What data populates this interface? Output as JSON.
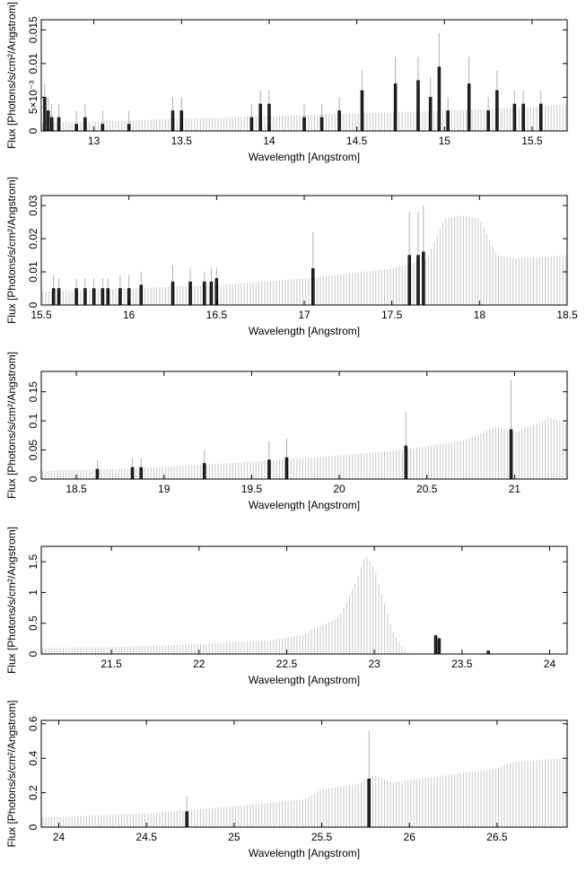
{
  "chart_data": [
    {
      "type": "bar",
      "panel": 1,
      "xlabel": "Wavelength [Angstrom]",
      "ylabel": "Flux [Photons/s/cm²/Angstrom]",
      "xlim": [
        12.7,
        15.7
      ],
      "ylim": [
        0,
        0.0165
      ],
      "xticks": [
        13,
        13.5,
        14,
        14.5,
        15,
        15.5
      ],
      "xtick_labels": [
        "13",
        "13.5",
        "14",
        "14.5",
        "15",
        "15.5"
      ],
      "yticks": [
        0,
        0.005,
        0.01,
        0.015
      ],
      "ytick_labels": [
        "0",
        "5×10⁻³",
        "0.01",
        "0.015"
      ],
      "grid": false,
      "continuum": [
        [
          12.7,
          0.0012
        ],
        [
          13.0,
          0.0014
        ],
        [
          13.5,
          0.0018
        ],
        [
          14.0,
          0.0022
        ],
        [
          14.5,
          0.0026
        ],
        [
          15.0,
          0.003
        ],
        [
          15.5,
          0.0035
        ],
        [
          15.7,
          0.004
        ]
      ],
      "lines": [
        [
          12.72,
          0.005,
          0.007
        ],
        [
          12.74,
          0.003,
          0.005
        ],
        [
          12.76,
          0.002,
          0.004
        ],
        [
          12.8,
          0.002,
          0.004
        ],
        [
          12.9,
          0.001,
          0.003
        ],
        [
          12.95,
          0.002,
          0.004
        ],
        [
          13.05,
          0.001,
          0.003
        ],
        [
          13.2,
          0.001,
          0.003
        ],
        [
          13.45,
          0.003,
          0.005
        ],
        [
          13.5,
          0.003,
          0.005
        ],
        [
          13.9,
          0.002,
          0.004
        ],
        [
          13.95,
          0.004,
          0.006
        ],
        [
          14.0,
          0.004,
          0.006
        ],
        [
          14.2,
          0.002,
          0.004
        ],
        [
          14.3,
          0.002,
          0.004
        ],
        [
          14.4,
          0.003,
          0.005
        ],
        [
          14.53,
          0.006,
          0.009
        ],
        [
          14.72,
          0.007,
          0.011
        ],
        [
          14.85,
          0.0075,
          0.011
        ],
        [
          14.92,
          0.005,
          0.008
        ],
        [
          14.97,
          0.0095,
          0.0145
        ],
        [
          15.02,
          0.003,
          0.005
        ],
        [
          15.14,
          0.007,
          0.011
        ],
        [
          15.25,
          0.003,
          0.005
        ],
        [
          15.3,
          0.006,
          0.009
        ],
        [
          15.4,
          0.004,
          0.006
        ],
        [
          15.45,
          0.004,
          0.006
        ],
        [
          15.55,
          0.004,
          0.006
        ]
      ]
    },
    {
      "type": "bar",
      "panel": 2,
      "xlabel": "Wavelength [Angstrom]",
      "ylabel": "Flux [Photons/s/cm²/Angstrom]",
      "xlim": [
        15.5,
        18.5
      ],
      "ylim": [
        0,
        0.033
      ],
      "xticks": [
        15.5,
        16,
        16.5,
        17,
        17.5,
        18,
        18.5
      ],
      "xtick_labels": [
        "15.5",
        "16",
        "16.5",
        "17",
        "17.5",
        "18",
        "18.5"
      ],
      "yticks": [
        0,
        0.01,
        0.02,
        0.03
      ],
      "ytick_labels": [
        "0",
        "0.01",
        "0.02",
        "0.03"
      ],
      "grid": false,
      "continuum": [
        [
          15.5,
          0.004
        ],
        [
          16.0,
          0.005
        ],
        [
          16.5,
          0.006
        ],
        [
          17.0,
          0.008
        ],
        [
          17.5,
          0.011
        ],
        [
          17.7,
          0.014
        ],
        [
          17.8,
          0.026
        ],
        [
          17.9,
          0.027
        ],
        [
          18.0,
          0.026
        ],
        [
          18.1,
          0.015
        ],
        [
          18.2,
          0.014
        ],
        [
          18.5,
          0.015
        ]
      ],
      "lines": [
        [
          15.57,
          0.005,
          0.009
        ],
        [
          15.6,
          0.005,
          0.008
        ],
        [
          15.7,
          0.005,
          0.008
        ],
        [
          15.75,
          0.005,
          0.008
        ],
        [
          15.8,
          0.005,
          0.008
        ],
        [
          15.85,
          0.005,
          0.008
        ],
        [
          15.88,
          0.005,
          0.008
        ],
        [
          15.95,
          0.005,
          0.009
        ],
        [
          16.0,
          0.005,
          0.009
        ],
        [
          16.07,
          0.006,
          0.01
        ],
        [
          16.25,
          0.007,
          0.012
        ],
        [
          16.35,
          0.007,
          0.011
        ],
        [
          16.43,
          0.007,
          0.01
        ],
        [
          16.47,
          0.007,
          0.011
        ],
        [
          16.5,
          0.008,
          0.011
        ],
        [
          17.05,
          0.011,
          0.022
        ],
        [
          17.6,
          0.015,
          0.028
        ],
        [
          17.65,
          0.015,
          0.028
        ],
        [
          17.68,
          0.016,
          0.03
        ]
      ]
    },
    {
      "type": "bar",
      "panel": 3,
      "xlabel": "Wavelength [Angstrom]",
      "ylabel": "Flux [Photons/s/cm²/Angstrom]",
      "xlim": [
        18.3,
        21.3
      ],
      "ylim": [
        0,
        0.185
      ],
      "xticks": [
        18.5,
        19,
        19.5,
        20,
        20.5,
        21
      ],
      "xtick_labels": [
        "18.5",
        "19",
        "19.5",
        "20",
        "20.5",
        "21"
      ],
      "yticks": [
        0,
        0.05,
        0.1,
        0.15
      ],
      "ytick_labels": [
        "0",
        "0.05",
        "0.1",
        "0.15"
      ],
      "grid": false,
      "continuum": [
        [
          18.3,
          0.014
        ],
        [
          18.8,
          0.018
        ],
        [
          19.3,
          0.026
        ],
        [
          19.8,
          0.036
        ],
        [
          20.3,
          0.048
        ],
        [
          20.7,
          0.065
        ],
        [
          20.9,
          0.09
        ],
        [
          21.0,
          0.08
        ],
        [
          21.2,
          0.105
        ],
        [
          21.3,
          0.095
        ]
      ],
      "lines": [
        [
          18.62,
          0.017,
          0.033
        ],
        [
          18.82,
          0.02,
          0.035
        ],
        [
          18.87,
          0.02,
          0.035
        ],
        [
          19.23,
          0.027,
          0.05
        ],
        [
          19.6,
          0.033,
          0.065
        ],
        [
          19.7,
          0.037,
          0.07
        ],
        [
          20.38,
          0.057,
          0.115
        ],
        [
          20.98,
          0.085,
          0.17
        ]
      ]
    },
    {
      "type": "bar",
      "panel": 4,
      "xlabel": "Wavelength [Angstrom]",
      "ylabel": "Flux [Photons/s/cm²/Angstrom]",
      "xlim": [
        21.1,
        24.1
      ],
      "ylim": [
        0,
        1.75
      ],
      "xticks": [
        21.5,
        22,
        22.5,
        23,
        23.5,
        24
      ],
      "xtick_labels": [
        "21.5",
        "22",
        "22.5",
        "23",
        "23.5",
        "24"
      ],
      "yticks": [
        0,
        0.5,
        1,
        1.5
      ],
      "ytick_labels": [
        "0",
        "0.5",
        "1",
        "1.5"
      ],
      "grid": false,
      "continuum": [
        [
          21.1,
          0.1
        ],
        [
          21.5,
          0.11
        ],
        [
          22.0,
          0.16
        ],
        [
          22.4,
          0.22
        ],
        [
          22.6,
          0.32
        ],
        [
          22.8,
          0.6
        ],
        [
          22.9,
          1.2
        ],
        [
          22.95,
          1.62
        ],
        [
          23.0,
          1.4
        ],
        [
          23.05,
          0.9
        ],
        [
          23.1,
          0.4
        ],
        [
          23.15,
          0.15
        ],
        [
          23.2,
          0.0
        ],
        [
          24.1,
          0.0
        ]
      ],
      "lines": [
        [
          23.35,
          0.3,
          0.32
        ],
        [
          23.37,
          0.25,
          0.28
        ],
        [
          23.65,
          0.05,
          0.06
        ]
      ]
    },
    {
      "type": "bar",
      "panel": 5,
      "xlabel": "Wavelength [Angstrom]",
      "ylabel": "Flux [Photons/s/cm²/Angstrom]",
      "xlim": [
        23.9,
        26.9
      ],
      "ylim": [
        0,
        0.62
      ],
      "xticks": [
        24,
        24.5,
        25,
        25.5,
        26,
        26.5
      ],
      "xtick_labels": [
        "24",
        "24.5",
        "25",
        "25.5",
        "26",
        "26.5"
      ],
      "yticks": [
        0,
        0.2,
        0.4,
        0.6
      ],
      "ytick_labels": [
        "0",
        "0.2",
        "0.4",
        "0.6"
      ],
      "grid": false,
      "continuum": [
        [
          23.9,
          0.055
        ],
        [
          24.5,
          0.08
        ],
        [
          25.0,
          0.12
        ],
        [
          25.4,
          0.16
        ],
        [
          25.5,
          0.22
        ],
        [
          25.7,
          0.25
        ],
        [
          25.8,
          0.3
        ],
        [
          25.9,
          0.26
        ],
        [
          26.2,
          0.3
        ],
        [
          26.5,
          0.34
        ],
        [
          26.6,
          0.38
        ],
        [
          26.9,
          0.4
        ]
      ],
      "lines": [
        [
          24.73,
          0.09,
          0.18
        ],
        [
          25.77,
          0.28,
          0.56
        ]
      ]
    }
  ]
}
